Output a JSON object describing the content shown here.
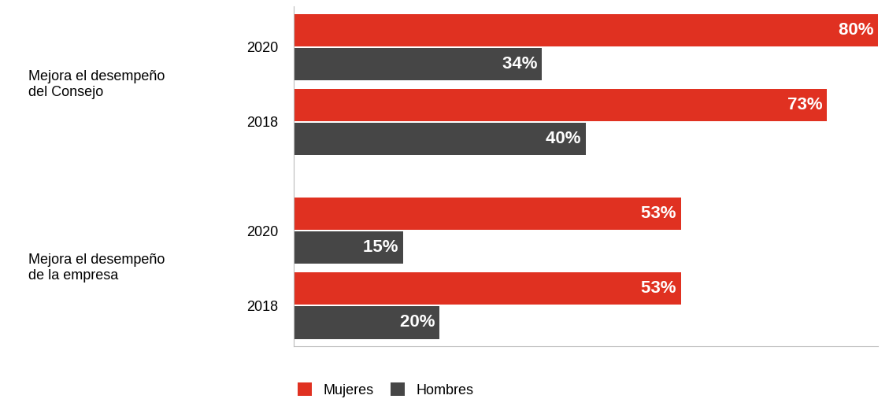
{
  "chart_data": {
    "type": "bar",
    "orientation": "horizontal",
    "groups": [
      {
        "label": "Mejora el desempeño\ndel Consejo",
        "categories": [
          "2020",
          "2018"
        ]
      },
      {
        "label": "Mejora el desempeño\nde la empresa",
        "categories": [
          "2020",
          "2018"
        ]
      }
    ],
    "series": [
      {
        "name": "Mujeres",
        "color": "#e03121",
        "values": [
          80,
          73,
          53,
          53
        ],
        "value_labels": [
          "80%",
          "73%",
          "53%",
          "53%"
        ]
      },
      {
        "name": "Hombres",
        "color": "#464646",
        "values": [
          34,
          40,
          15,
          20
        ],
        "value_labels": [
          "34%",
          "40%",
          "15%",
          "20%"
        ]
      }
    ],
    "xlim": [
      0,
      80
    ],
    "xticks": [],
    "data_labels": true,
    "tick_labels": "y",
    "grid": false,
    "legend": "lower left"
  }
}
